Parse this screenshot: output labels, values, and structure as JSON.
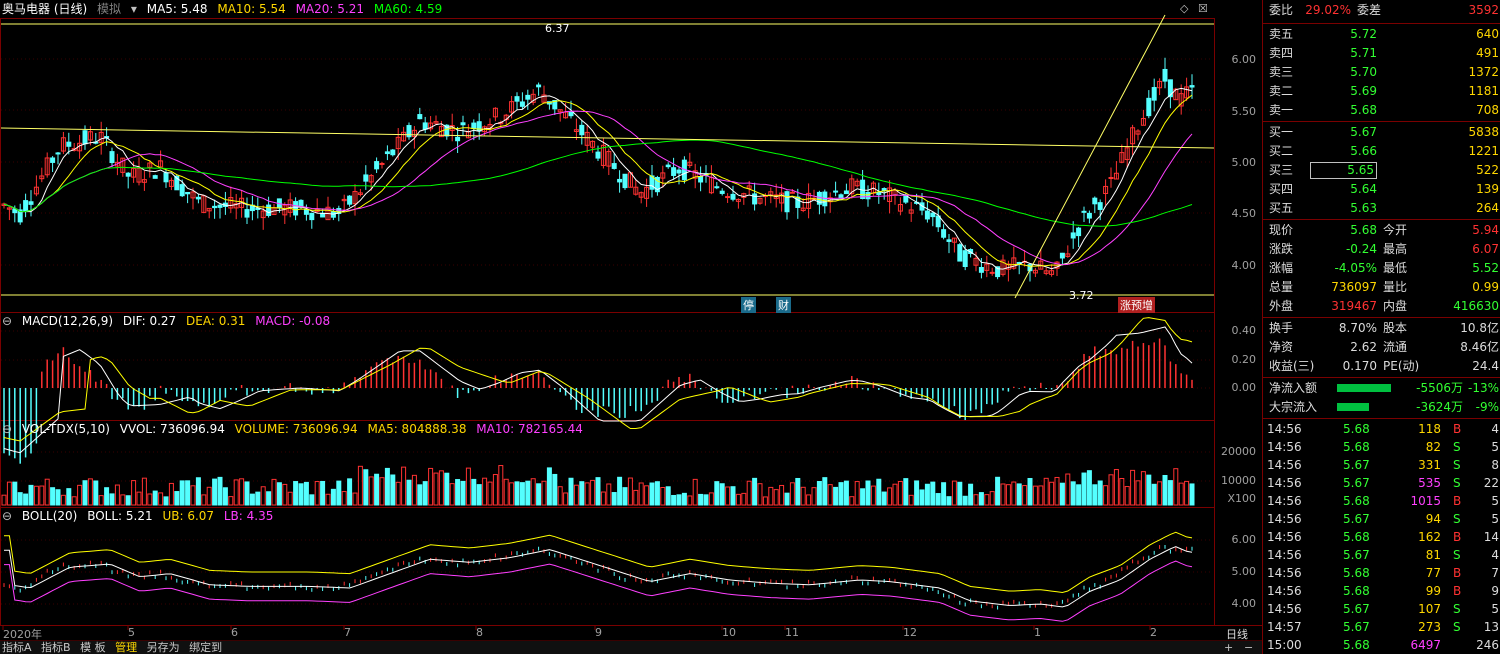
{
  "kline": {
    "title": "奥马电器 (日线)",
    "sim": "模拟",
    "ma5": "MA5: 5.48",
    "ma10": "MA10: 5.54",
    "ma20": "MA20: 5.21",
    "ma60": "MA60: 4.59",
    "high_marker": "6.37",
    "low_marker": "3.72",
    "yaxis": [
      "6.00",
      "5.50",
      "5.00",
      "4.50",
      "4.00"
    ],
    "event_labels": [
      "停",
      "财",
      "涨",
      "预",
      "增"
    ]
  },
  "macd": {
    "title": "MACD(12,26,9)",
    "dif": "DIF: 0.27",
    "dea": "DEA: 0.31",
    "macd": "MACD: -0.08",
    "yaxis": [
      "0.40",
      "0.20",
      "0.00"
    ]
  },
  "vol": {
    "title": "VOL-TDX(5,10)",
    "vvol": "VVOL: 736096.94",
    "volume": "VOLUME: 736096.94",
    "ma5": "MA5: 804888.38",
    "ma10": "MA10: 782165.44",
    "yaxis": [
      "20000",
      "10000"
    ],
    "unit": "X100"
  },
  "boll": {
    "title": "BOLL(20)",
    "boll": "BOLL: 5.21",
    "ub": "UB: 6.07",
    "lb": "LB: 4.35",
    "yaxis": [
      "6.00",
      "5.00",
      "4.00"
    ]
  },
  "xaxis": [
    "2020年",
    "5",
    "6",
    "7",
    "8",
    "9",
    "10",
    "11",
    "12",
    "1",
    "2"
  ],
  "period": "日线",
  "bottom_tabs": [
    "指标A",
    "指标B",
    "模 板",
    "管理",
    "另存为",
    "绑定到"
  ],
  "quote": {
    "weibi_label": "委比",
    "weibi": "29.02%",
    "weicha_label": "委差",
    "weicha": "3592",
    "asks": [
      {
        "label": "卖五",
        "price": "5.72",
        "vol": "640"
      },
      {
        "label": "卖四",
        "price": "5.71",
        "vol": "491"
      },
      {
        "label": "卖三",
        "price": "5.70",
        "vol": "1372"
      },
      {
        "label": "卖二",
        "price": "5.69",
        "vol": "1181"
      },
      {
        "label": "卖一",
        "price": "5.68",
        "vol": "708"
      }
    ],
    "bids": [
      {
        "label": "买一",
        "price": "5.67",
        "vol": "5838"
      },
      {
        "label": "买二",
        "price": "5.66",
        "vol": "1221"
      },
      {
        "label": "买三",
        "price": "5.65",
        "vol": "522"
      },
      {
        "label": "买四",
        "price": "5.64",
        "vol": "139"
      },
      {
        "label": "买五",
        "price": "5.63",
        "vol": "264"
      }
    ],
    "stats": [
      {
        "l1": "现价",
        "v1": "5.68",
        "c1": "dn",
        "l2": "今开",
        "v2": "5.94",
        "c2": "up"
      },
      {
        "l1": "涨跌",
        "v1": "-0.24",
        "c1": "dn",
        "l2": "最高",
        "v2": "6.07",
        "c2": "up"
      },
      {
        "l1": "涨幅",
        "v1": "-4.05%",
        "c1": "dn",
        "l2": "最低",
        "v2": "5.52",
        "c2": "dn"
      },
      {
        "l1": "总量",
        "v1": "736097",
        "c1": "yel",
        "l2": "量比",
        "v2": "0.99",
        "c2": "yel"
      },
      {
        "l1": "外盘",
        "v1": "319467",
        "c1": "up",
        "l2": "内盘",
        "v2": "416630",
        "c2": "dn"
      }
    ],
    "fin": [
      {
        "l1": "换手",
        "v1": "8.70%",
        "l2": "股本",
        "v2": "10.8亿"
      },
      {
        "l1": "净资",
        "v1": "2.62",
        "l2": "流通",
        "v2": "8.46亿"
      },
      {
        "l1": "收益(三)",
        "v1": "0.170",
        "l2": "PE(动)",
        "v2": "24.4"
      }
    ],
    "flows": [
      {
        "label": "净流入额",
        "value": "-5506万",
        "pct": "-13%",
        "bar": 0.75
      },
      {
        "label": "大宗流入",
        "value": "-3624万",
        "pct": "-9%",
        "bar": 0.45
      }
    ]
  },
  "ticks": [
    {
      "time": "14:56",
      "price": "5.68",
      "vol": "118",
      "bs": "B",
      "n": "4",
      "pc": "dn",
      "vc": "yel",
      "bc": "up"
    },
    {
      "time": "14:56",
      "price": "5.68",
      "vol": "82",
      "bs": "S",
      "n": "5",
      "pc": "dn",
      "vc": "yel",
      "bc": "dn"
    },
    {
      "time": "14:56",
      "price": "5.67",
      "vol": "331",
      "bs": "S",
      "n": "8",
      "pc": "dn",
      "vc": "yel",
      "bc": "dn"
    },
    {
      "time": "14:56",
      "price": "5.67",
      "vol": "535",
      "bs": "S",
      "n": "22",
      "pc": "dn",
      "vc": "mag",
      "bc": "dn"
    },
    {
      "time": "14:56",
      "price": "5.68",
      "vol": "1015",
      "bs": "B",
      "n": "5",
      "pc": "dn",
      "vc": "mag",
      "bc": "up"
    },
    {
      "time": "14:56",
      "price": "5.67",
      "vol": "94",
      "bs": "S",
      "n": "5",
      "pc": "dn",
      "vc": "yel",
      "bc": "dn"
    },
    {
      "time": "14:56",
      "price": "5.68",
      "vol": "162",
      "bs": "B",
      "n": "14",
      "pc": "dn",
      "vc": "yel",
      "bc": "up"
    },
    {
      "time": "14:56",
      "price": "5.67",
      "vol": "81",
      "bs": "S",
      "n": "4",
      "pc": "dn",
      "vc": "yel",
      "bc": "dn"
    },
    {
      "time": "14:56",
      "price": "5.68",
      "vol": "77",
      "bs": "B",
      "n": "7",
      "pc": "dn",
      "vc": "yel",
      "bc": "up"
    },
    {
      "time": "14:56",
      "price": "5.68",
      "vol": "99",
      "bs": "B",
      "n": "9",
      "pc": "dn",
      "vc": "yel",
      "bc": "up"
    },
    {
      "time": "14:56",
      "price": "5.67",
      "vol": "107",
      "bs": "S",
      "n": "5",
      "pc": "dn",
      "vc": "yel",
      "bc": "dn"
    },
    {
      "time": "14:57",
      "price": "5.67",
      "vol": "273",
      "bs": "S",
      "n": "13",
      "pc": "dn",
      "vc": "yel",
      "bc": "dn"
    },
    {
      "time": "15:00",
      "price": "5.68",
      "vol": "6497",
      "bs": "",
      "n": "246",
      "pc": "dn",
      "vc": "mag",
      "bc": "up"
    }
  ],
  "colors": {
    "up": "#ff3232",
    "down": "#54ffff",
    "ma5": "#ffffff",
    "ma10": "#ffff00",
    "ma20": "#ff40ff",
    "ma60": "#00ff00"
  }
}
